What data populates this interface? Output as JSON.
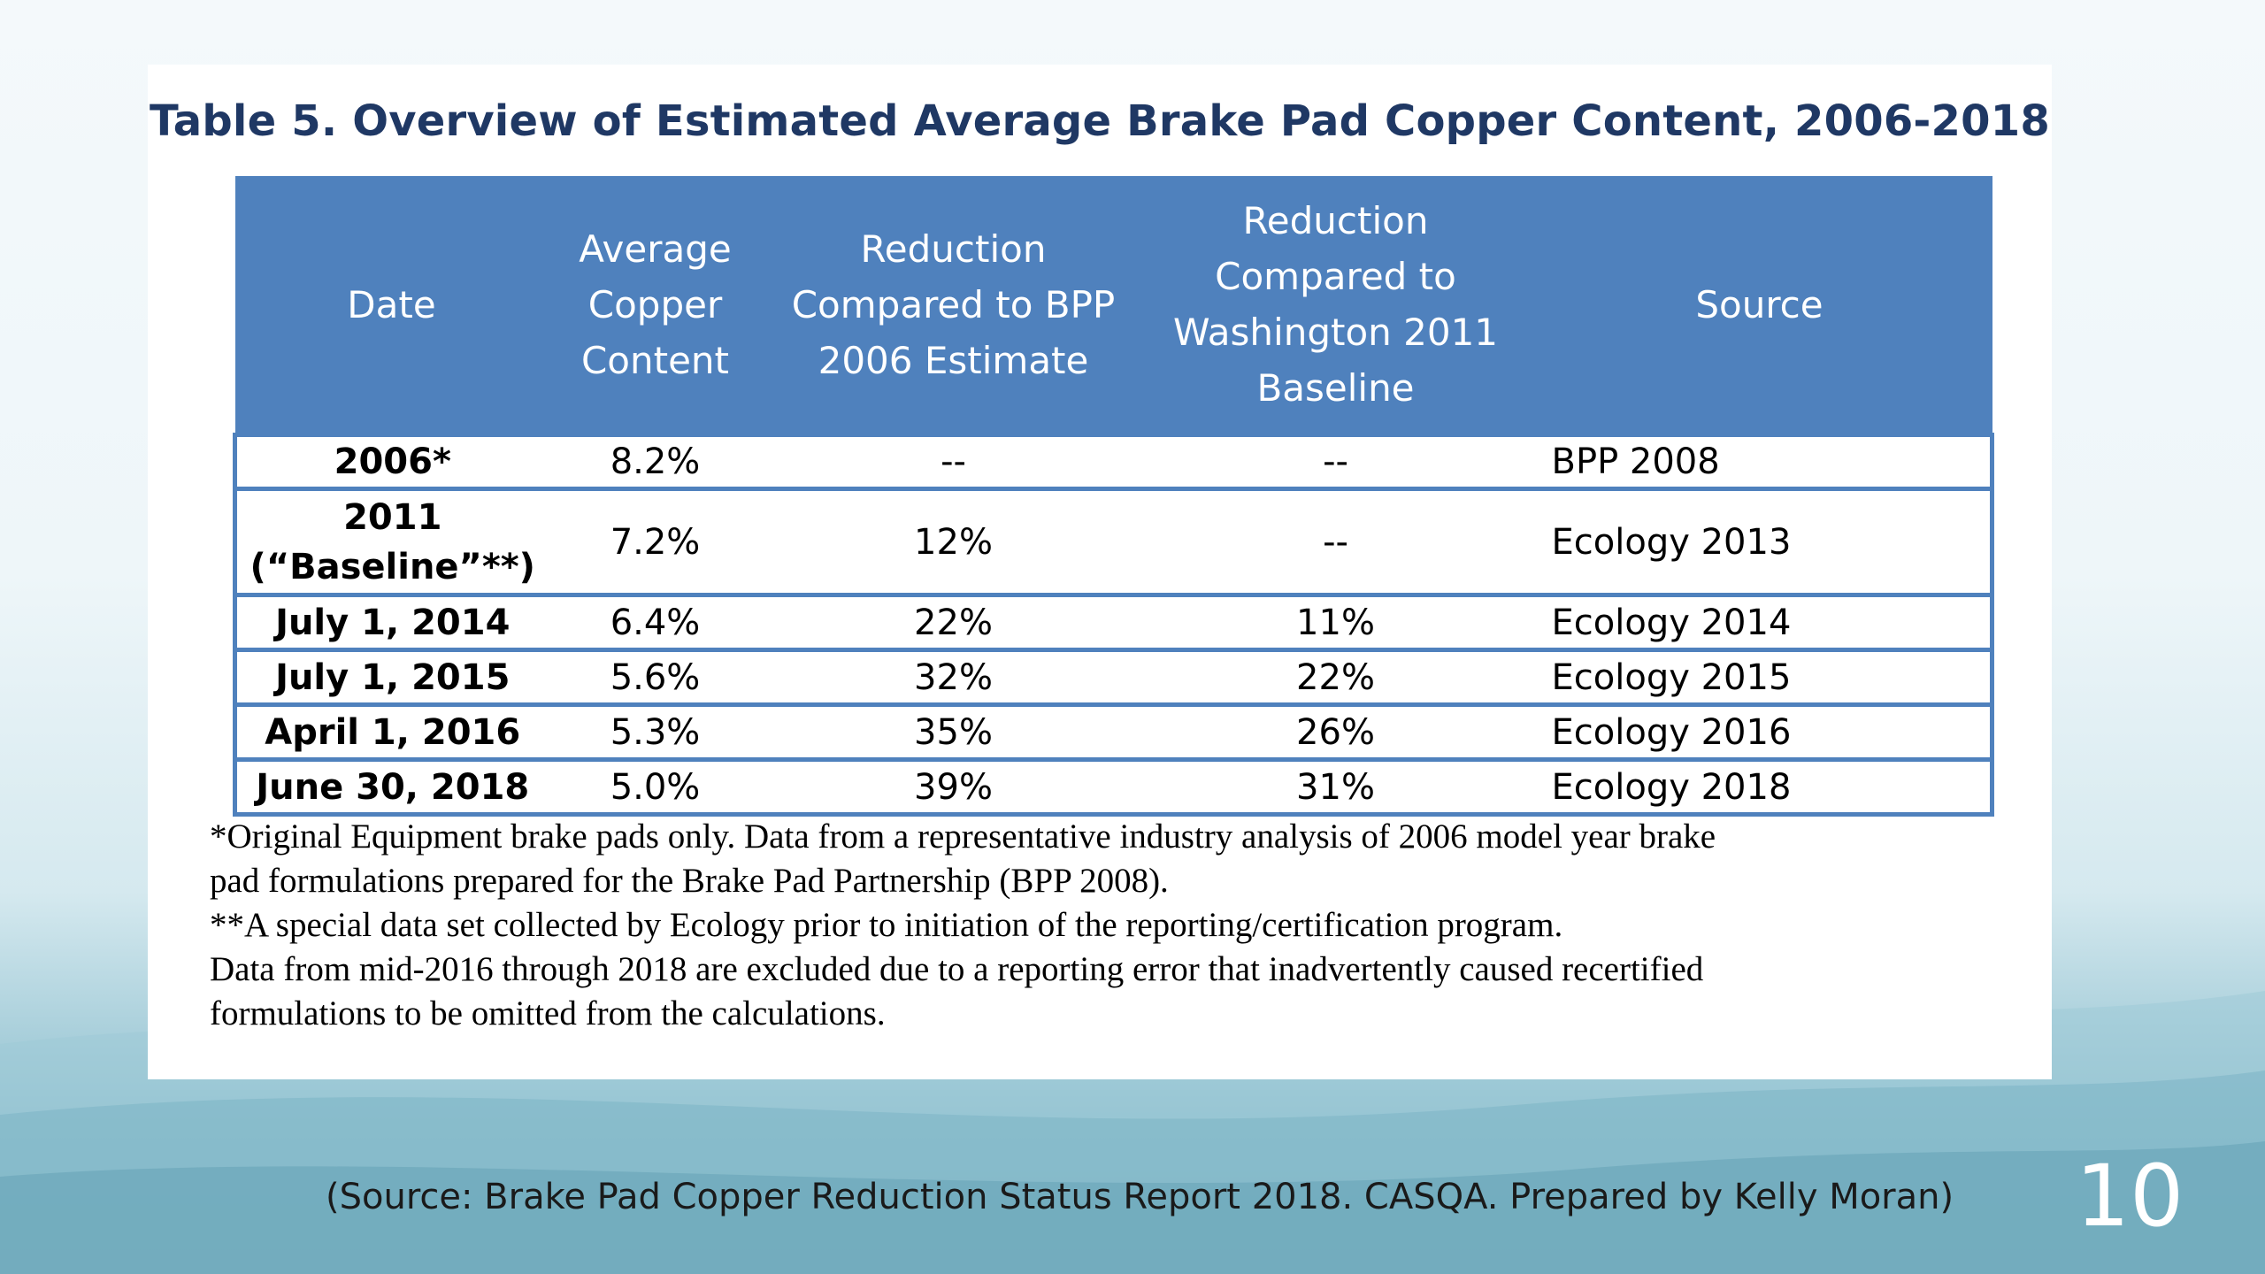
{
  "slide": {
    "title": "Table 5.  Overview of Estimated Average Brake Pad Copper Content, 2006-2018",
    "columns": [
      [
        "Date"
      ],
      [
        "Average",
        "Copper",
        "Content"
      ],
      [
        "Reduction",
        "Compared to BPP",
        "2006 Estimate"
      ],
      [
        "Reduction",
        "Compared to",
        "Washington 2011",
        "Baseline"
      ],
      [
        "Source"
      ]
    ],
    "rows": [
      {
        "date": [
          "2006*"
        ],
        "avg": "8.2%",
        "bpp": "--",
        "wa": "--",
        "source": "BPP 2008"
      },
      {
        "date": [
          "2011",
          "(“Baseline”**)"
        ],
        "avg": "7.2%",
        "bpp": "12%",
        "wa": "--",
        "source": "Ecology 2013"
      },
      {
        "date": [
          "July 1, 2014"
        ],
        "avg": "6.4%",
        "bpp": "22%",
        "wa": "11%",
        "source": "Ecology 2014"
      },
      {
        "date": [
          "July 1, 2015"
        ],
        "avg": "5.6%",
        "bpp": "32%",
        "wa": "22%",
        "source": "Ecology 2015"
      },
      {
        "date": [
          "April 1, 2016"
        ],
        "avg": "5.3%",
        "bpp": "35%",
        "wa": "26%",
        "source": "Ecology 2016"
      },
      {
        "date": [
          "June 30, 2018"
        ],
        "avg": "5.0%",
        "bpp": "39%",
        "wa": "31%",
        "source": "Ecology 2018"
      }
    ],
    "notes": [
      "*Original Equipment brake pads only. Data from a representative industry analysis of 2006 model year brake",
      "pad formulations prepared for the Brake Pad Partnership (BPP 2008).",
      "**A special data set collected by Ecology prior to initiation of the reporting/certification program.",
      "Data from mid-2016 through 2018 are excluded due to a reporting error that inadvertently caused recertified",
      "formulations to be omitted from the calculations."
    ],
    "source_text": "(Source: Brake Pad Copper Reduction Status Report 2018. CASQA. Prepared by Kelly Moran)",
    "page_number": "10",
    "colors": {
      "header_bg": "#4f81bd",
      "title": "#1f3864"
    }
  }
}
